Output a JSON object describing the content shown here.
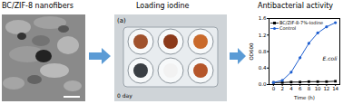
{
  "panels": [
    {
      "title": "BC/ZIF-8 nanofibers"
    },
    {
      "title": "Loading iodine",
      "labels": [
        "(a)",
        "0 day"
      ]
    },
    {
      "title": "Antibacterial activity"
    }
  ],
  "chart_data": {
    "type": "line",
    "annotations": [
      "E.coli"
    ],
    "xlabel": "Time (h)",
    "ylabel": "OD600",
    "x": [
      0,
      2,
      4,
      6,
      8,
      10,
      12,
      14
    ],
    "series": [
      {
        "name": "BC/ZIF-8-7%-Iodine",
        "color": "#000000",
        "marker": "square",
        "values": [
          0.05,
          0.05,
          0.06,
          0.06,
          0.07,
          0.07,
          0.07,
          0.08
        ]
      },
      {
        "name": "Control",
        "color": "#1f5fd0",
        "marker": "circle",
        "values": [
          0.05,
          0.1,
          0.3,
          0.65,
          1.0,
          1.25,
          1.4,
          1.5
        ]
      }
    ],
    "xlim": [
      -1,
      15
    ],
    "xticks": [
      0,
      2,
      4,
      6,
      8,
      10,
      12,
      14
    ],
    "ylim": [
      0,
      1.6
    ],
    "yticks": [
      {
        "value": 0,
        "label": "0.0"
      },
      {
        "value": 0.4,
        "label": "0.4"
      },
      {
        "value": 0.8,
        "label": "0.8"
      },
      {
        "value": 1.2,
        "label": "1.2"
      },
      {
        "value": 1.6,
        "label": "1.6"
      }
    ],
    "legend": "top-left"
  }
}
